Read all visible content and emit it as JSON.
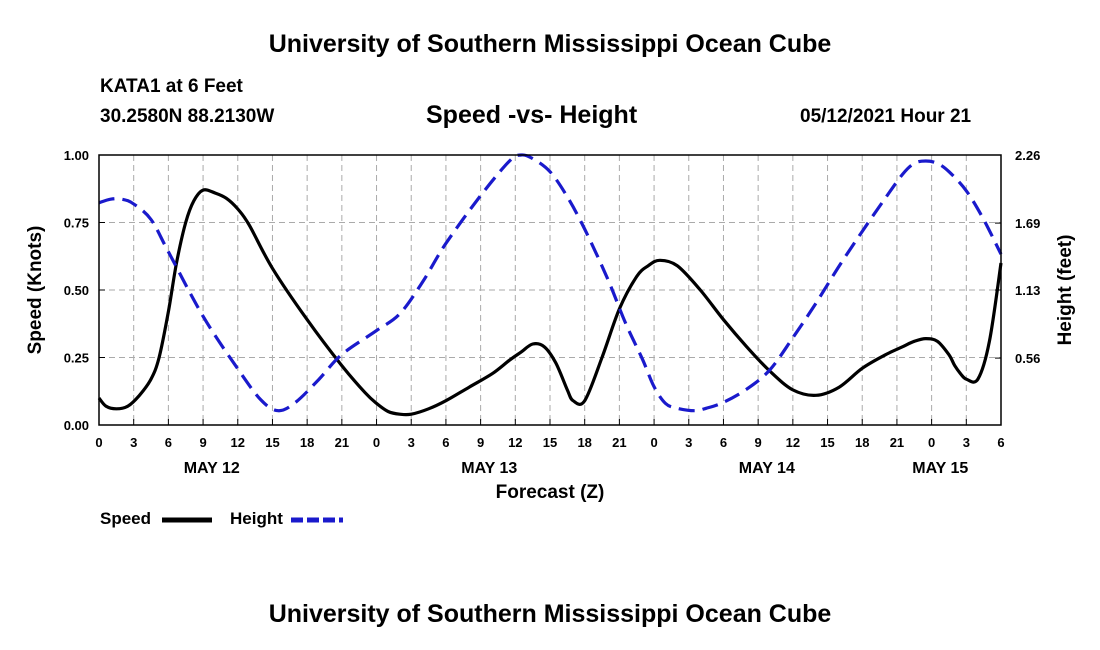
{
  "header": {
    "title": "University of Southern Mississippi Ocean Cube",
    "station": "KATA1 at 6 Feet",
    "coords": "30.2580N  88.2130W",
    "subtitle": "Speed -vs- Height",
    "datetime": "05/12/2021 Hour 21"
  },
  "footer": {
    "title": "University of Southern Mississippi Ocean Cube"
  },
  "chart_data": {
    "type": "line",
    "title": "Speed -vs- Height",
    "xlabel": "Forecast (Z)",
    "ylabel_left": "Speed (Knots)",
    "ylabel_right": "Height (feet)",
    "x_range": [
      0,
      78
    ],
    "ylim_left": [
      0,
      1.0
    ],
    "ylim_right": [
      0,
      2.26
    ],
    "grid": true,
    "x_tick_values": [
      0,
      3,
      6,
      9,
      12,
      15,
      18,
      21,
      24,
      27,
      30,
      33,
      36,
      39,
      42,
      45,
      48,
      51,
      54,
      57,
      60,
      63,
      66,
      69,
      72,
      75,
      78
    ],
    "x_tick_labels": [
      "0",
      "3",
      "6",
      "9",
      "12",
      "15",
      "18",
      "21",
      "0",
      "3",
      "6",
      "9",
      "12",
      "15",
      "18",
      "21",
      "0",
      "3",
      "6",
      "9",
      "12",
      "15",
      "18",
      "21",
      "0",
      "3",
      "6"
    ],
    "y_ticks_left": [
      "0.00",
      "0.25",
      "0.50",
      "0.75",
      "1.00"
    ],
    "y_tick_values_left": [
      0,
      0.25,
      0.5,
      0.75,
      1.0
    ],
    "y_ticks_right": [
      "0.56",
      "1.13",
      "1.69",
      "2.26"
    ],
    "y_tick_values_right": [
      0.56,
      1.13,
      1.69,
      2.26
    ],
    "date_labels": [
      {
        "label": "MAY 12",
        "x": 9.75
      },
      {
        "label": "MAY 13",
        "x": 33.75
      },
      {
        "label": "MAY 14",
        "x": 57.75
      },
      {
        "label": "MAY 15",
        "x": 72.75
      }
    ],
    "series": [
      {
        "name": "Speed",
        "axis": "left",
        "color": "#000000",
        "dash": "solid",
        "x": [
          0,
          0.6,
          1.5,
          2.5,
          3.5,
          4.5,
          5.2,
          6,
          6.7,
          7.5,
          8.2,
          9,
          10,
          11,
          12,
          13,
          15,
          18,
          21,
          23,
          24,
          25,
          26,
          27,
          28.5,
          30,
          32,
          34,
          35.5,
          36.5,
          37.5,
          38.5,
          39.5,
          40.5,
          41,
          42,
          43.5,
          45,
          46.5,
          47.5,
          48.5,
          50,
          52,
          54,
          56,
          58,
          60,
          62,
          64,
          66,
          68,
          69.5,
          70.5,
          71.5,
          72.5,
          73.5,
          74,
          74.5,
          75,
          76,
          77,
          78
        ],
        "values": [
          0.1,
          0.07,
          0.06,
          0.07,
          0.11,
          0.17,
          0.25,
          0.42,
          0.6,
          0.75,
          0.83,
          0.87,
          0.86,
          0.84,
          0.8,
          0.74,
          0.58,
          0.39,
          0.22,
          0.12,
          0.08,
          0.05,
          0.04,
          0.04,
          0.06,
          0.09,
          0.14,
          0.19,
          0.24,
          0.27,
          0.3,
          0.29,
          0.23,
          0.13,
          0.09,
          0.09,
          0.25,
          0.43,
          0.55,
          0.59,
          0.61,
          0.59,
          0.5,
          0.39,
          0.29,
          0.2,
          0.13,
          0.11,
          0.14,
          0.21,
          0.26,
          0.29,
          0.31,
          0.32,
          0.31,
          0.26,
          0.22,
          0.19,
          0.17,
          0.17,
          0.31,
          0.6
        ]
      },
      {
        "name": "Height",
        "axis": "right",
        "color": "#1a1acc",
        "dash": "dashed",
        "x": [
          0,
          1,
          2,
          3,
          4.5,
          6,
          9,
          12,
          14,
          15.5,
          17,
          19,
          21,
          24,
          26,
          28,
          30,
          33,
          35.5,
          36.5,
          37.5,
          39,
          40.5,
          42,
          44,
          45.5,
          47,
          48,
          49,
          50,
          51.5,
          52.5,
          54,
          56,
          58,
          60,
          62,
          64,
          66,
          68,
          69.5,
          70.5,
          71.5,
          72.5,
          73.5,
          75,
          76.5,
          78
        ],
        "values": [
          1.86,
          1.89,
          1.89,
          1.85,
          1.72,
          1.45,
          0.91,
          0.47,
          0.21,
          0.12,
          0.19,
          0.38,
          0.59,
          0.79,
          0.93,
          1.2,
          1.52,
          1.92,
          2.21,
          2.26,
          2.23,
          2.12,
          1.91,
          1.64,
          1.22,
          0.86,
          0.55,
          0.32,
          0.18,
          0.14,
          0.12,
          0.14,
          0.19,
          0.3,
          0.46,
          0.73,
          1.02,
          1.33,
          1.62,
          1.9,
          2.1,
          2.19,
          2.21,
          2.19,
          2.12,
          1.96,
          1.72,
          1.43
        ]
      }
    ],
    "legend": [
      {
        "label": "Speed",
        "color": "#000000",
        "dash": "solid"
      },
      {
        "label": "Height",
        "color": "#1a1acc",
        "dash": "dashed"
      }
    ],
    "legend_position": "bottom-left"
  }
}
